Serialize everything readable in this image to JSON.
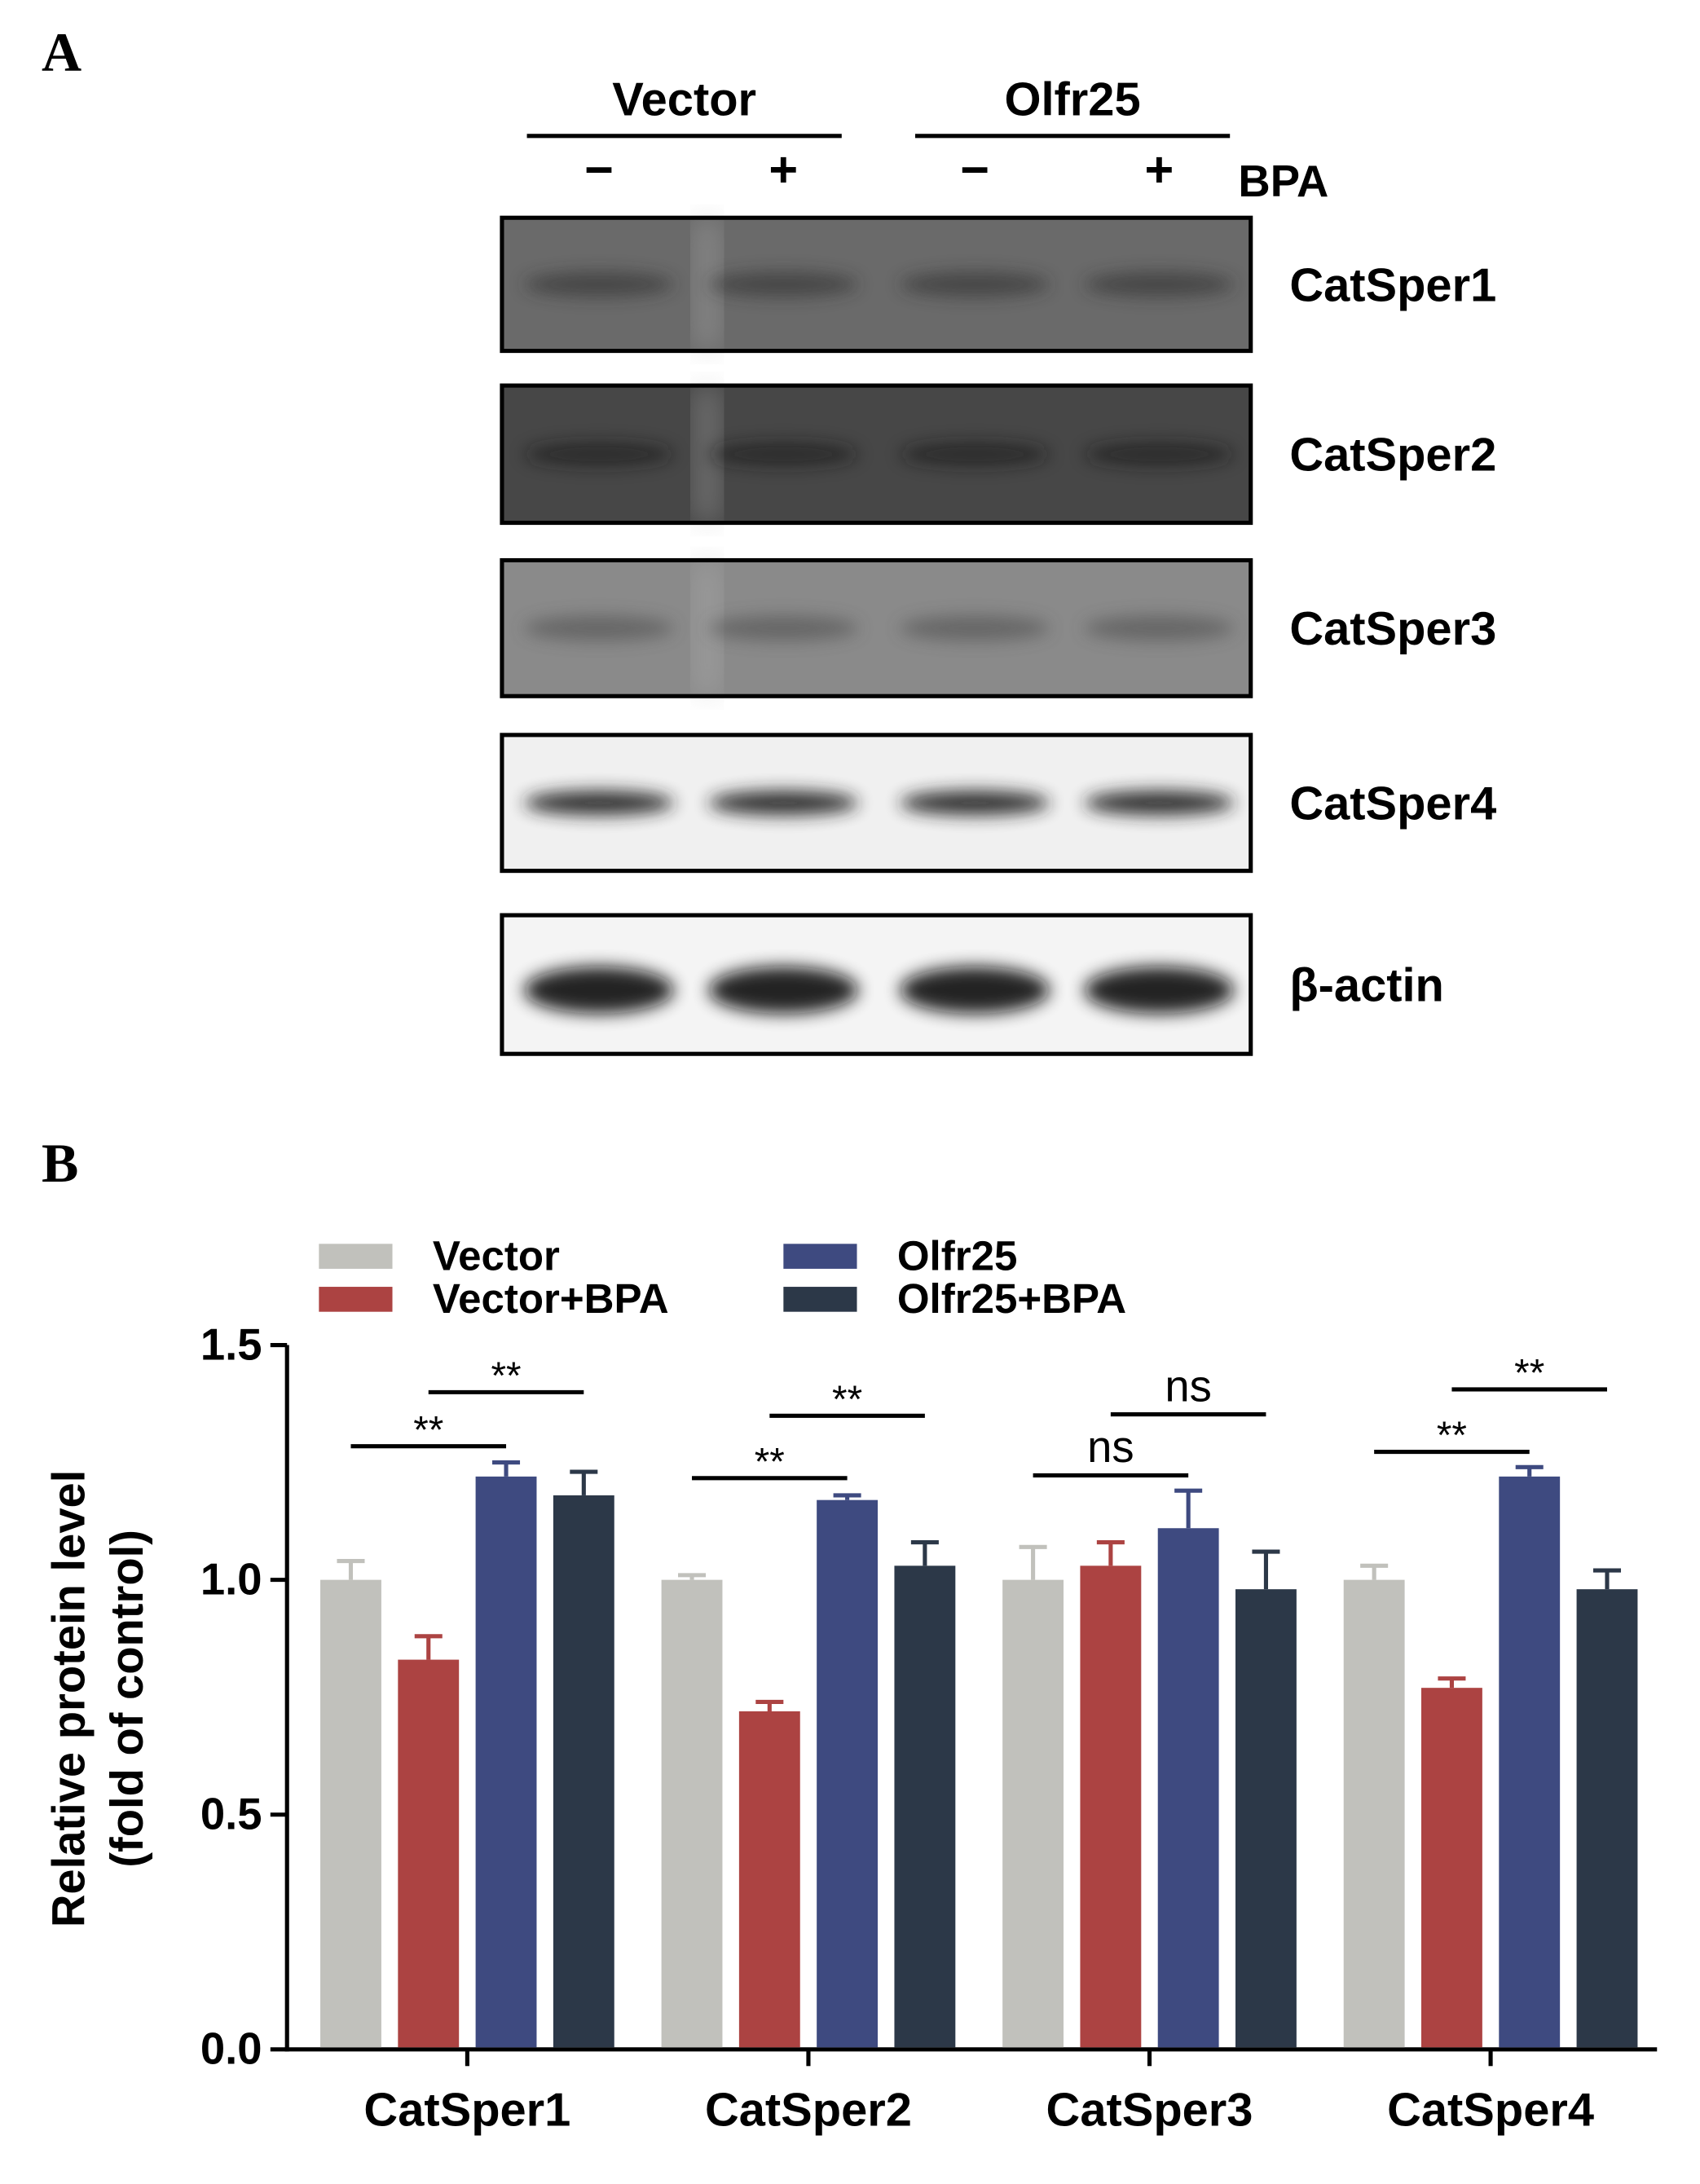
{
  "panel_a": {
    "label": "A",
    "groups": [
      "Vector",
      "Olfr25"
    ],
    "treatments": [
      "−",
      "+",
      "−",
      "+"
    ],
    "treatment_name": "BPA",
    "rows": [
      "CatSper1",
      "CatSper2",
      "CatSper3",
      "CatSper4",
      "β-actin"
    ]
  },
  "chart_data": {
    "type": "bar",
    "panel_label": "B",
    "ylabel": [
      "Relative protein level",
      "(fold of control)"
    ],
    "categories": [
      "CatSper1",
      "CatSper2",
      "CatSper3",
      "CatSper4"
    ],
    "series": [
      {
        "name": "Vector",
        "color": "#c1c1bc",
        "values": [
          1.0,
          1.0,
          1.0,
          1.0
        ],
        "errors": [
          0.04,
          0.01,
          0.07,
          0.03
        ]
      },
      {
        "name": "Vector+BPA",
        "color": "#ac4342",
        "values": [
          0.83,
          0.72,
          1.03,
          0.77
        ],
        "errors": [
          0.05,
          0.02,
          0.05,
          0.02
        ]
      },
      {
        "name": "Olfr25",
        "color": "#3e4a80",
        "values": [
          1.22,
          1.17,
          1.11,
          1.22
        ],
        "errors": [
          0.03,
          0.01,
          0.08,
          0.02
        ]
      },
      {
        "name": "Olfr25+BPA",
        "color": "#2c3848",
        "values": [
          1.18,
          1.03,
          0.98,
          0.98
        ],
        "errors": [
          0.05,
          0.05,
          0.08,
          0.04
        ]
      }
    ],
    "ylim": [
      0,
      1.5
    ],
    "yticks": [
      {
        "value": 0,
        "label": "0.0"
      },
      0.5,
      {
        "value": 1,
        "label": "1.0"
      },
      1.5
    ],
    "significance": [
      "**",
      "**",
      "**",
      "**",
      "ns",
      "ns",
      "**",
      "**"
    ]
  }
}
